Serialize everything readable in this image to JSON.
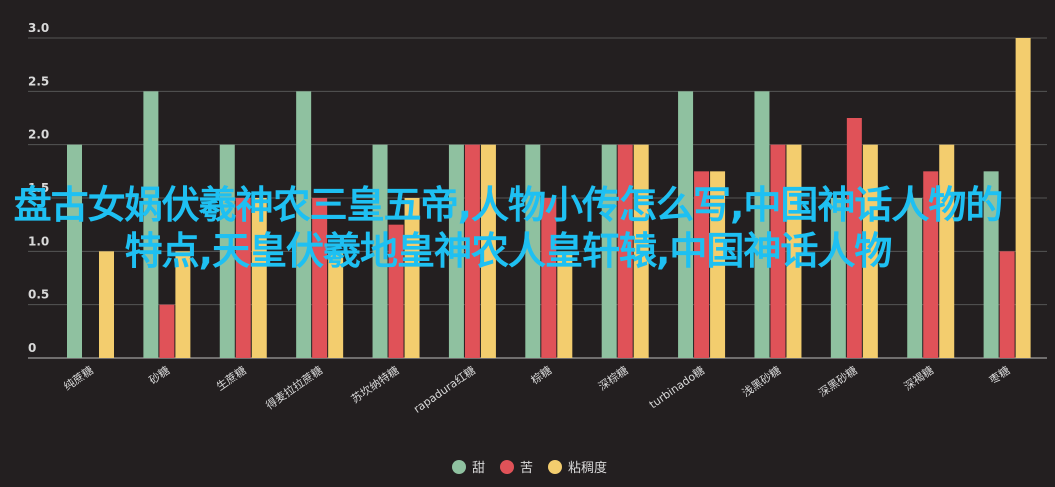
{
  "chart_data": {
    "type": "bar",
    "categories": [
      "纯蔗糖",
      "砂糖",
      "生蔗糖",
      "得麦拉拉蔗糖",
      "苏坎纳特糖",
      "rapadura红糖",
      "棕糖",
      "深棕糖",
      "turbinado糖",
      "浅黑砂糖",
      "深黑砂糖",
      "深褐糖",
      "枣糖"
    ],
    "series": [
      {
        "name": "甜",
        "values": [
          2.0,
          2.5,
          2.0,
          2.5,
          2.0,
          2.0,
          2.0,
          2.0,
          2.5,
          2.5,
          1.5,
          1.5,
          1.75
        ]
      },
      {
        "name": "苦",
        "values": [
          0,
          0.5,
          1.5,
          1.5,
          1.25,
          2.0,
          1.5,
          2.0,
          1.75,
          2.0,
          2.25,
          1.75,
          1.0
        ]
      },
      {
        "name": "粘稠度",
        "values": [
          1.0,
          1.0,
          1.5,
          1.0,
          1.5,
          2.0,
          1.0,
          2.0,
          1.75,
          2.0,
          2.0,
          2.0,
          3.0
        ]
      }
    ],
    "colors": [
      "#8fc1a0",
      "#e05258",
      "#f3cd6e"
    ],
    "yticks": [
      "0",
      "0.5",
      "1.0",
      "1.5",
      "2.0",
      "2.5",
      "3.0"
    ],
    "ylim": [
      0,
      3.0
    ],
    "grid": true,
    "legend": "bottom-center"
  },
  "overlay": {
    "text": "盘古女娲伏羲神农三皇五帝,人物小传怎么写,中国神话人物的特点,天皇伏羲地皇神农人皇轩辕,中国神话人物"
  }
}
